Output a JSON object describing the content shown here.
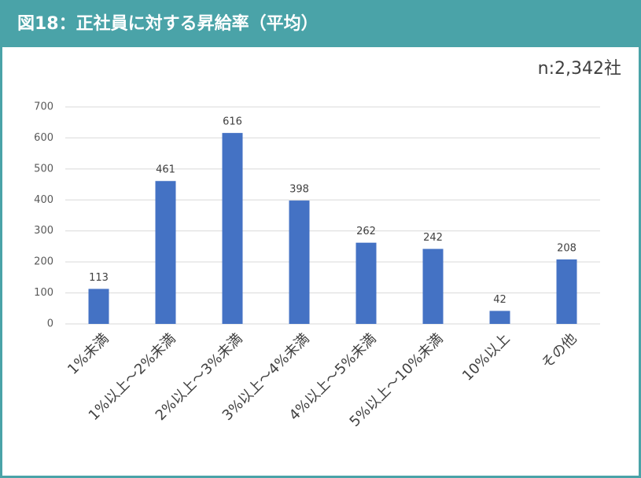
{
  "chart_data": {
    "type": "bar",
    "title": "図18：正社員に対する昇給率（平均）",
    "annotation": "n:2,342社",
    "categories": [
      "1%未満",
      "1%以上～2%未満",
      "2%以上～3%未満",
      "3%以上～4%未満",
      "4%以上～5%未満",
      "5%以上～10%未満",
      "10%以上",
      "その他"
    ],
    "values": [
      113,
      461,
      616,
      398,
      262,
      242,
      42,
      208
    ],
    "color": "#4472c4",
    "ylim": [
      0,
      700
    ],
    "yticks": [
      0,
      100,
      200,
      300,
      400,
      500,
      600,
      700
    ],
    "grid": true
  }
}
